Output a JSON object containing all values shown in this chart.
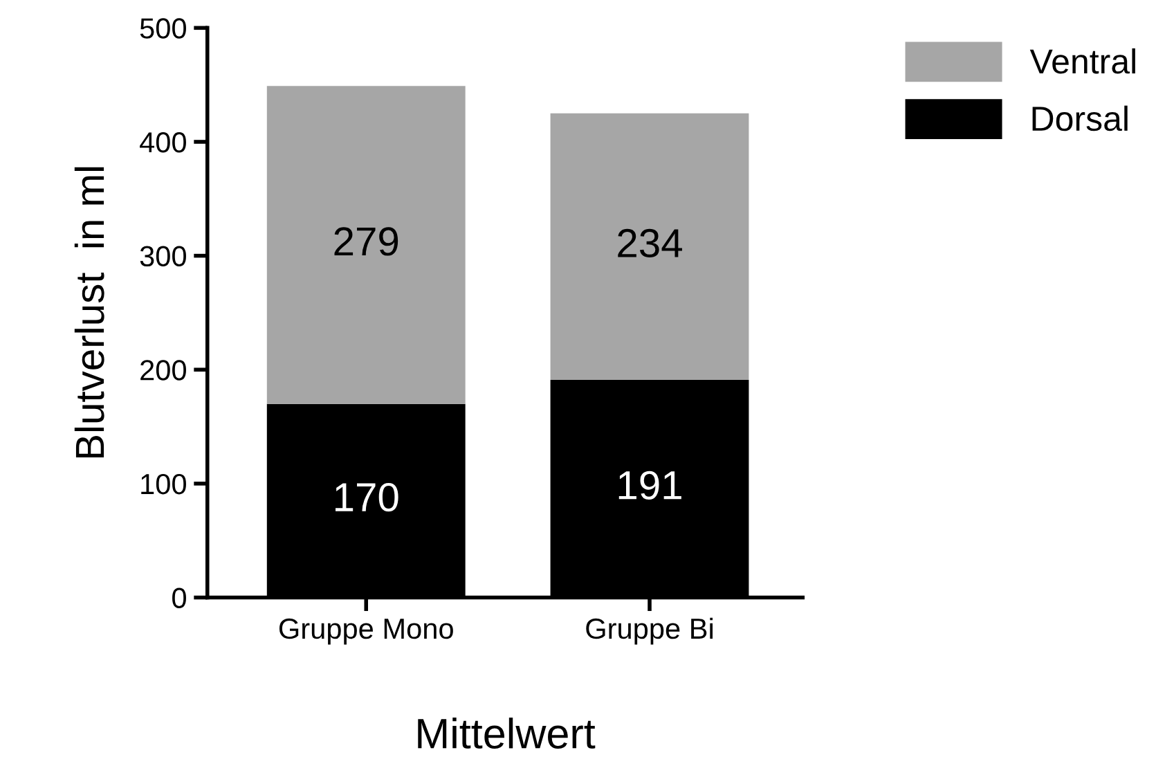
{
  "chart_data": {
    "type": "bar",
    "stacked": true,
    "xlabel": "Mittelwert",
    "ylabel": "Blutverlust  in ml",
    "categories": [
      "Gruppe Mono",
      "Gruppe Bi"
    ],
    "series": [
      {
        "name": "Dorsal",
        "color": "#000000",
        "values": [
          170,
          191
        ]
      },
      {
        "name": "Ventral",
        "color": "#a6a6a6",
        "values": [
          279,
          234
        ]
      }
    ],
    "ylim": [
      0,
      500
    ],
    "yticks": [
      0,
      100,
      200,
      300,
      400,
      500
    ],
    "data_labels": true,
    "legend": "top right",
    "grid": false
  }
}
